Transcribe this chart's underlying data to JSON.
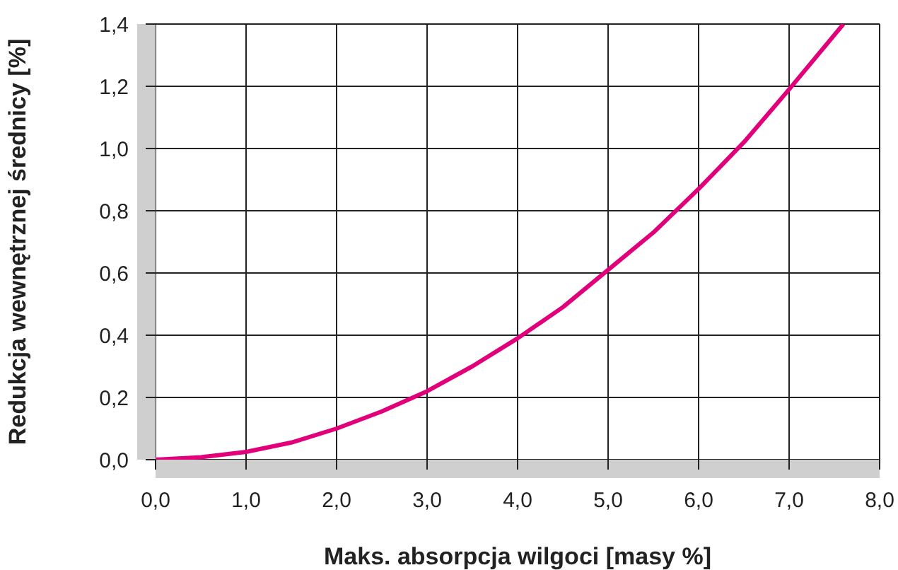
{
  "chart_data": {
    "type": "line",
    "xlabel": "Maks. absorpcja wilgoci [masy %]",
    "ylabel": "Redukcja  wewnętrznej średnicy [%]",
    "x": [
      0,
      0.5,
      1,
      1.5,
      2,
      2.5,
      3,
      3.5,
      4,
      4.5,
      5,
      5.5,
      6,
      6.5,
      7,
      7.6
    ],
    "series": [
      {
        "color": "#e2007a",
        "values": [
          0,
          0.008,
          0.025,
          0.055,
          0.1,
          0.155,
          0.22,
          0.3,
          0.39,
          0.49,
          0.61,
          0.73,
          0.87,
          1.02,
          1.19,
          1.4
        ]
      }
    ],
    "xlim": [
      0,
      8
    ],
    "ylim": [
      0,
      1.4
    ],
    "xticks": [
      {
        "value": 0,
        "label": "0,0"
      },
      {
        "value": 1,
        "label": "1,0"
      },
      {
        "value": 2,
        "label": "2,0"
      },
      {
        "value": 3,
        "label": "3,0"
      },
      {
        "value": 4,
        "label": "4,0"
      },
      {
        "value": 5,
        "label": "5,0"
      },
      {
        "value": 6,
        "label": "6,0"
      },
      {
        "value": 7,
        "label": "7,0"
      },
      {
        "value": 8,
        "label": "8,0"
      }
    ],
    "yticks": [
      {
        "value": 0,
        "label": "0,0"
      },
      {
        "value": 0.2,
        "label": "0,2"
      },
      {
        "value": 0.4,
        "label": "0,4"
      },
      {
        "value": 0.6,
        "label": "0,6"
      },
      {
        "value": 0.8,
        "label": "0,8"
      },
      {
        "value": 1,
        "label": "1,0"
      },
      {
        "value": 1.2,
        "label": "1,2"
      },
      {
        "value": 1.4,
        "label": "1,4"
      }
    ],
    "grid": true,
    "marker": "none",
    "line_style": "solid"
  }
}
